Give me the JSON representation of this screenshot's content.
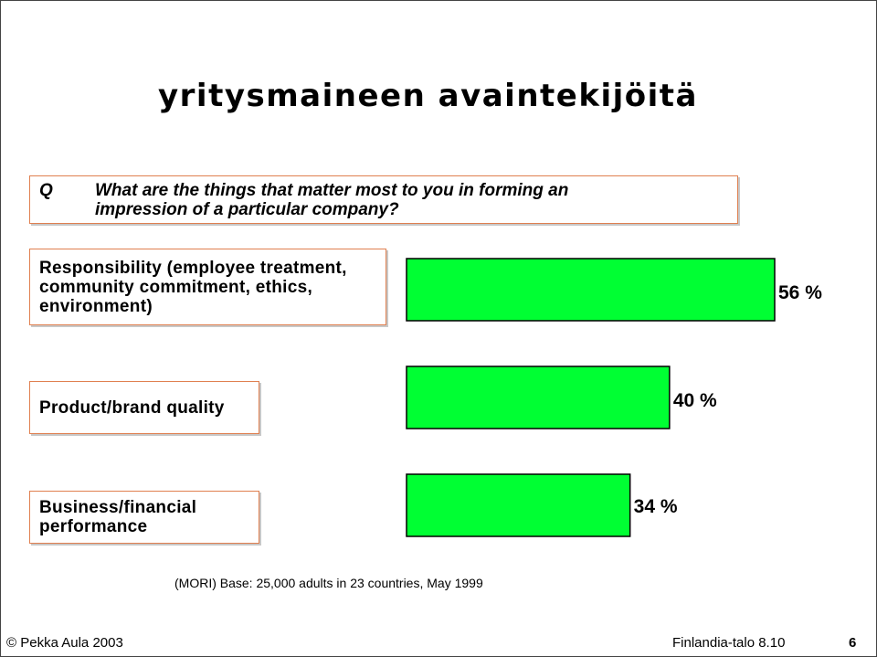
{
  "slide": {
    "title": "yritysmaineen avaintekijöitä",
    "question": {
      "marker": "Q",
      "lines": [
        "What are the things that matter most to you in forming an",
        "impression of a particular company?"
      ]
    },
    "source": "(MORI) Base: 25,000 adults in 23 countries, May 1999",
    "footer": {
      "copyright": "© Pekka Aula 2003",
      "venue": "Finlandia-talo 8.10",
      "page_number": "6"
    }
  },
  "chart_data": {
    "type": "bar",
    "orientation": "horizontal",
    "categories": [
      [
        "Responsibility (employee treatment,",
        "community commitment, ethics,",
        "environment)"
      ],
      [
        "Product/brand quality"
      ],
      [
        "Business/financial",
        "performance"
      ]
    ],
    "values": [
      56,
      40,
      34
    ],
    "value_labels": [
      "56 %",
      "40 %",
      "34 %"
    ],
    "unit": "%",
    "xlim": [
      0,
      56
    ],
    "grid": false,
    "bar_color": "#00ff33",
    "box_border_color": "#e08050"
  }
}
